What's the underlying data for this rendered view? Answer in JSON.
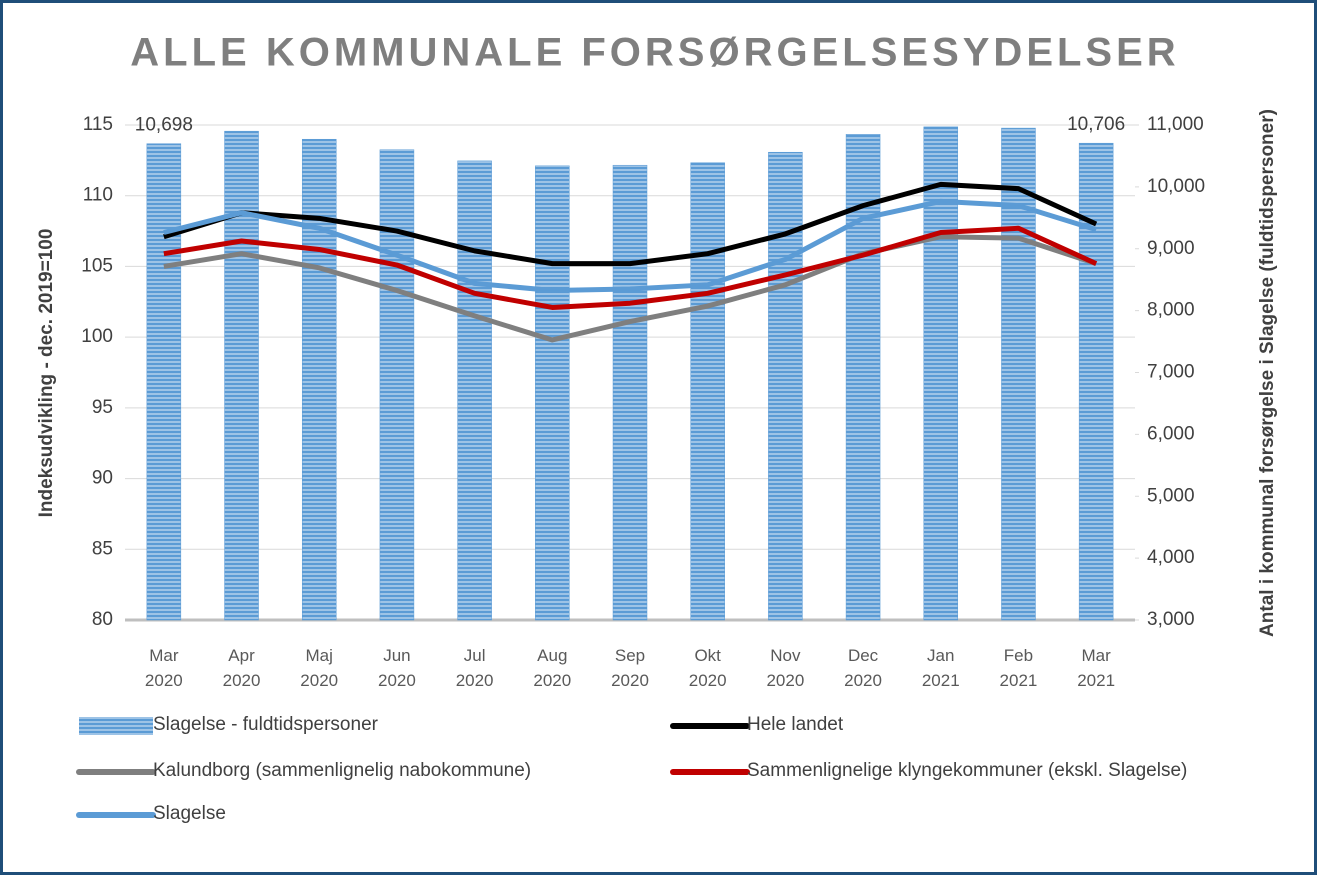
{
  "chart_data": {
    "type": "bar",
    "title": "ALLE KOMMUNALE FORSØRGELSESYDELSER",
    "y_label": "Indeksudvikling - dec. 2019=100",
    "y2_label": "Antal i kommunal forsørgelse  i Slagelse (fuldtidspersoner)",
    "categories": [
      "Mar 2020",
      "Apr 2020",
      "Maj 2020",
      "Jun 2020",
      "Jul 2020",
      "Aug 2020",
      "Sep 2020",
      "Okt 2020",
      "Nov 2020",
      "Dec 2020",
      "Jan 2021",
      "Feb 2021",
      "Mar 2021"
    ],
    "ylim": [
      80,
      115
    ],
    "yticks": [
      80,
      85,
      90,
      95,
      100,
      105,
      110,
      115
    ],
    "y2lim": [
      3000,
      11000
    ],
    "y2ticks": [
      {
        "value": 3000,
        "label": "3,000"
      },
      {
        "value": 4000,
        "label": "4,000"
      },
      {
        "value": 5000,
        "label": "5,000"
      },
      {
        "value": 6000,
        "label": "6,000"
      },
      {
        "value": 7000,
        "label": "7,000"
      },
      {
        "value": 8000,
        "label": "8,000"
      },
      {
        "value": 9000,
        "label": "9,000"
      },
      {
        "value": 10000,
        "label": "10,000"
      },
      {
        "value": 11000,
        "label": "11,000"
      }
    ],
    "grid": true,
    "series": [
      {
        "name": "Slagelse - fuldtidspersoner",
        "type": "bar",
        "axis": "y2",
        "color": "#5b9bd5",
        "values": [
          10698,
          10900,
          10770,
          10600,
          10420,
          10340,
          10350,
          10390,
          10560,
          10850,
          10970,
          10950,
          10706
        ],
        "value_labels": [
          "10,698",
          null,
          null,
          null,
          null,
          null,
          null,
          null,
          null,
          null,
          null,
          null,
          "10,706"
        ]
      },
      {
        "name": "Hele landet",
        "type": "line",
        "color": "#000000",
        "values": [
          107.1,
          108.8,
          108.4,
          107.5,
          106.1,
          105.2,
          105.2,
          105.9,
          107.3,
          109.3,
          110.8,
          110.5,
          108.0
        ]
      },
      {
        "name": "Kalundborg (sammenlignelig nabokommune)",
        "type": "line",
        "color": "#7f7f7f",
        "values": [
          105.0,
          105.9,
          104.9,
          103.3,
          101.5,
          99.8,
          101.1,
          102.2,
          103.7,
          105.9,
          107.1,
          107.0,
          105.2
        ]
      },
      {
        "name": "Sammenlignelige klyngekommuner (ekskl. Slagelse)",
        "type": "line",
        "color": "#c00000",
        "values": [
          105.9,
          106.8,
          106.2,
          105.1,
          103.1,
          102.1,
          102.4,
          103.1,
          104.4,
          105.8,
          107.4,
          107.7,
          105.2
        ]
      },
      {
        "name": "Slagelse",
        "type": "line",
        "color": "#5b9bd5",
        "values": [
          107.4,
          108.8,
          107.7,
          105.8,
          103.8,
          103.3,
          103.4,
          103.7,
          105.5,
          108.4,
          109.6,
          109.3,
          107.6
        ]
      }
    ]
  }
}
